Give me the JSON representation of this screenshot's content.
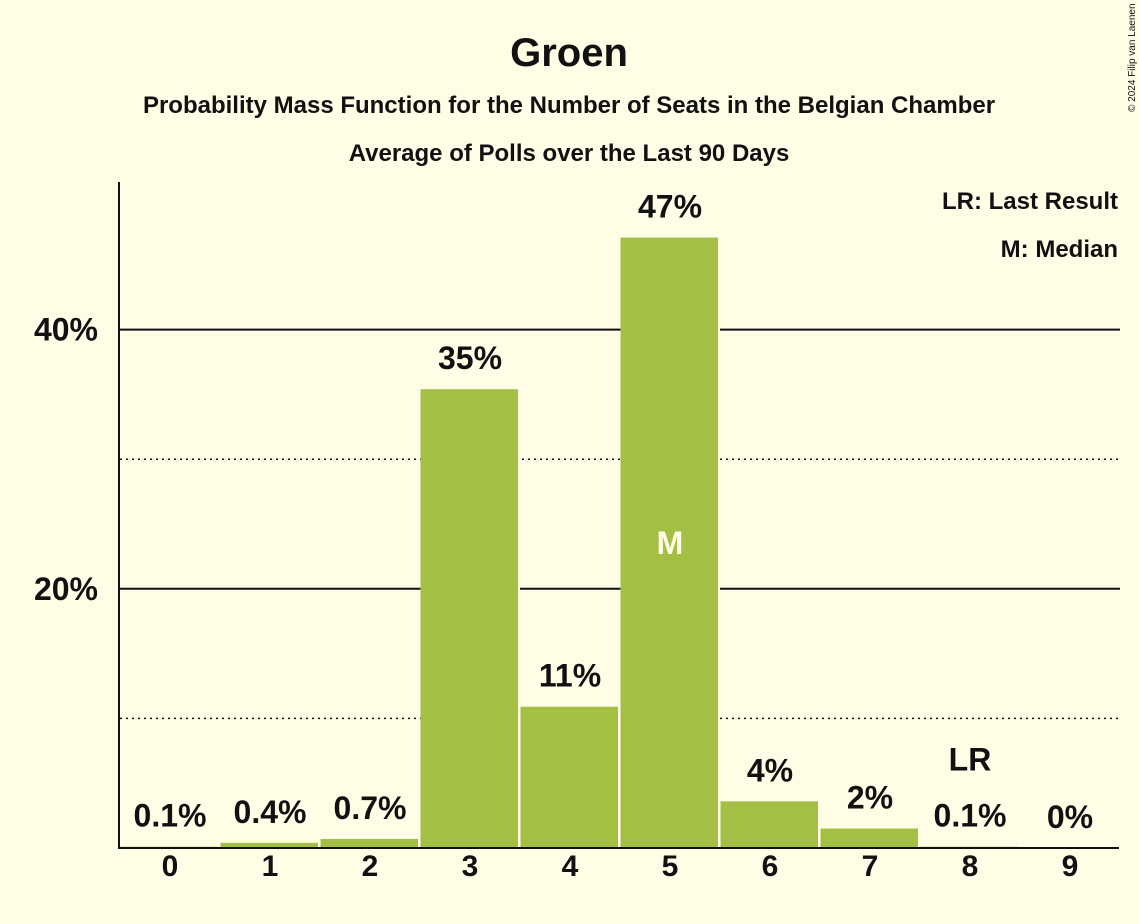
{
  "chart_data": {
    "type": "bar",
    "title": "Groen",
    "subtitle": "Probability Mass Function for the Number of Seats in the Belgian Chamber",
    "subtitle2": "Average of Polls over the Last 90 Days",
    "categories": [
      "0",
      "1",
      "2",
      "3",
      "4",
      "5",
      "6",
      "7",
      "8",
      "9"
    ],
    "values": [
      0.1,
      0.4,
      0.7,
      35.4,
      10.9,
      47.1,
      3.6,
      1.5,
      0.1,
      0
    ],
    "data_labels": [
      "0.1%",
      "0.4%",
      "0.7%",
      "35%",
      "11%",
      "47%",
      "4%",
      "2%",
      "0.1%",
      "0%"
    ],
    "y_ticks": [
      {
        "value": 20,
        "label": "20%"
      },
      {
        "value": 40,
        "label": "40%"
      }
    ],
    "minor_gridlines": [
      10,
      30
    ],
    "ylim": [
      0,
      51
    ],
    "bar_color": "#a3bf44",
    "background": "#fffde6",
    "median_index": 5,
    "median_marker": "M",
    "last_result_index": 8,
    "last_result_marker": "LR",
    "legend": [
      "LR: Last Result",
      "M: Median"
    ],
    "legend_position": "top-right",
    "copyright": "© 2024 Filip van Laenen"
  }
}
